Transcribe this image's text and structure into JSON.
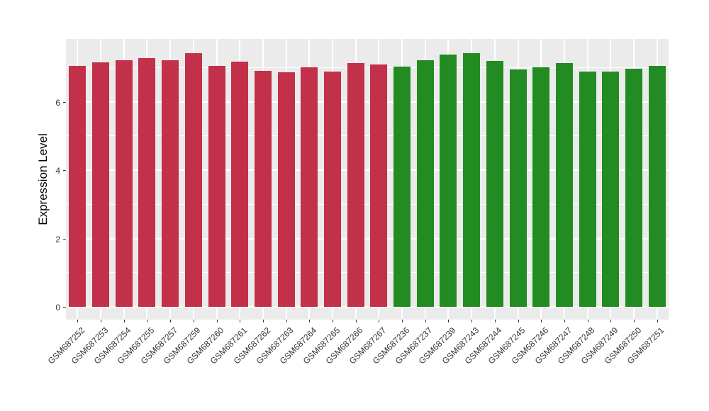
{
  "figure": {
    "style": "ggplot-grey-panel",
    "background_color": "#FFFFFF",
    "panel_color": "#EBEBEB",
    "gridline_color": "#FFFFFF",
    "axis_text_color": "#333333",
    "axis_title_color": "#000000"
  },
  "chart_data": {
    "type": "bar",
    "title": "",
    "xlabel": "",
    "ylabel": "Expression Level",
    "ylim": [
      -0.37,
      7.83
    ],
    "yticks": [
      0,
      2,
      4,
      6
    ],
    "yticks_minor": [
      1,
      3,
      5,
      7
    ],
    "grid": true,
    "legend": false,
    "x_tick_rotation_deg": 45,
    "categories": [
      "GSM687252",
      "GSM687253",
      "GSM687254",
      "GSM687255",
      "GSM687257",
      "GSM687259",
      "GSM687260",
      "GSM687261",
      "GSM687262",
      "GSM687263",
      "GSM687264",
      "GSM687265",
      "GSM687266",
      "GSM687267",
      "GSM687236",
      "GSM687237",
      "GSM687239",
      "GSM687243",
      "GSM687244",
      "GSM687245",
      "GSM687246",
      "GSM687247",
      "GSM687248",
      "GSM687249",
      "GSM687250",
      "GSM687251"
    ],
    "values": [
      7.04,
      7.15,
      7.22,
      7.28,
      7.22,
      7.42,
      7.05,
      7.17,
      6.9,
      6.85,
      7.0,
      6.89,
      7.12,
      7.08,
      7.03,
      7.21,
      7.38,
      7.43,
      7.19,
      6.95,
      7.01,
      7.12,
      6.88,
      6.88,
      6.96,
      7.05
    ],
    "groups": [
      "red",
      "red",
      "red",
      "red",
      "red",
      "red",
      "red",
      "red",
      "red",
      "red",
      "red",
      "red",
      "red",
      "red",
      "green",
      "green",
      "green",
      "green",
      "green",
      "green",
      "green",
      "green",
      "green",
      "green",
      "green",
      "green"
    ],
    "group_colors": {
      "red": "#C23049",
      "green": "#228B22"
    }
  }
}
